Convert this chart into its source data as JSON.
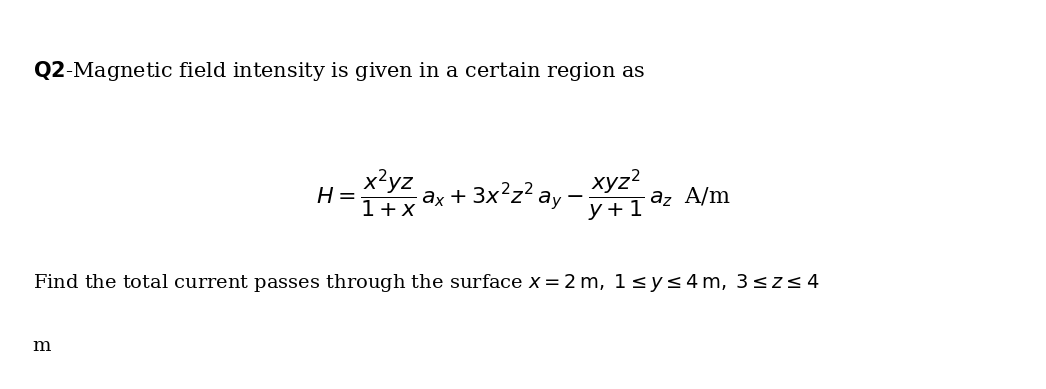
{
  "background_color": "#ffffff",
  "fig_width": 10.46,
  "fig_height": 3.89,
  "dpi": 100,
  "text_color": "#000000",
  "font_size_title": 15,
  "font_size_eq": 16,
  "font_size_find": 14
}
